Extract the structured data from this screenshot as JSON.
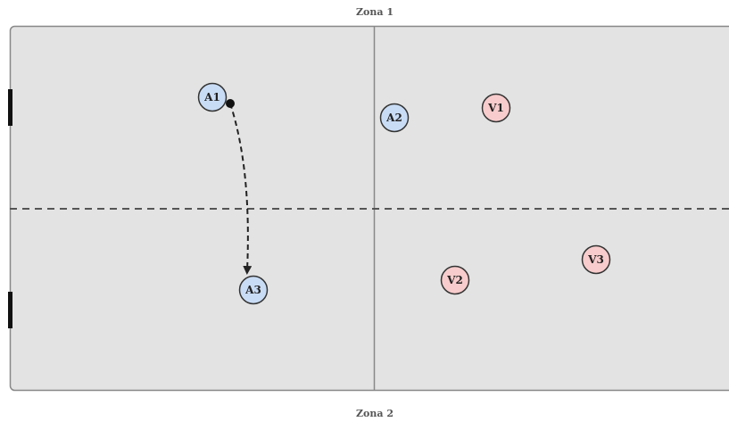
{
  "zones": {
    "top_label": "Zona 1",
    "bottom_label": "Zona 2"
  },
  "colors": {
    "field_fill": "#e3e3e3",
    "field_stroke": "#888888",
    "team_a_fill": "#c9dcf5",
    "team_v_fill": "#f8cccc",
    "token_stroke": "#333333",
    "arrow": "#222222",
    "goal": "#111111"
  },
  "players": [
    {
      "id": "A1",
      "label": "A1",
      "team": "A"
    },
    {
      "id": "A2",
      "label": "A2",
      "team": "A"
    },
    {
      "id": "A3",
      "label": "A3",
      "team": "A"
    },
    {
      "id": "V1",
      "label": "V1",
      "team": "V"
    },
    {
      "id": "V2",
      "label": "V2",
      "team": "V"
    },
    {
      "id": "V3",
      "label": "V3",
      "team": "V"
    }
  ],
  "movement": {
    "from": "A1",
    "to": "A3",
    "style": "dashed-arrow"
  }
}
